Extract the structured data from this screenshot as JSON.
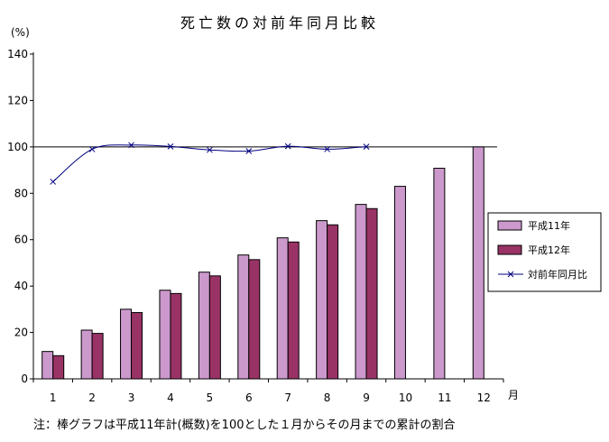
{
  "chart_data": {
    "type": "bar",
    "title": "死亡数の対前年同月比較",
    "ylabel": "(%)",
    "xlabel": "月",
    "ylim": [
      0,
      140
    ],
    "yticks": [
      0,
      20,
      40,
      60,
      80,
      100,
      120,
      140
    ],
    "reference_line": 100,
    "grid": false,
    "legend_position": "right",
    "categories": [
      "1",
      "2",
      "3",
      "4",
      "5",
      "6",
      "7",
      "8",
      "9",
      "10",
      "11",
      "12"
    ],
    "series": [
      {
        "name": "平成11年",
        "type": "bar",
        "color": "#cc99cc",
        "values": [
          11.8,
          21.0,
          30.0,
          38.2,
          46.0,
          53.4,
          60.8,
          68.2,
          75.2,
          83.0,
          90.8,
          100
        ]
      },
      {
        "name": "平成12年",
        "type": "bar",
        "color": "#993366",
        "values": [
          10.0,
          19.6,
          28.6,
          36.8,
          44.4,
          51.4,
          59.0,
          66.4,
          73.4,
          null,
          null,
          null
        ]
      },
      {
        "name": "対前年同月比",
        "type": "line",
        "color": "#000080",
        "marker": "x",
        "values": [
          85,
          99,
          100.8,
          100.2,
          98.7,
          98.2,
          100.3,
          99,
          100.1,
          null,
          null,
          null
        ]
      }
    ],
    "note": "注：棒グラフは平成11年計(概数)を100とした１月からその月までの累計の割合"
  }
}
